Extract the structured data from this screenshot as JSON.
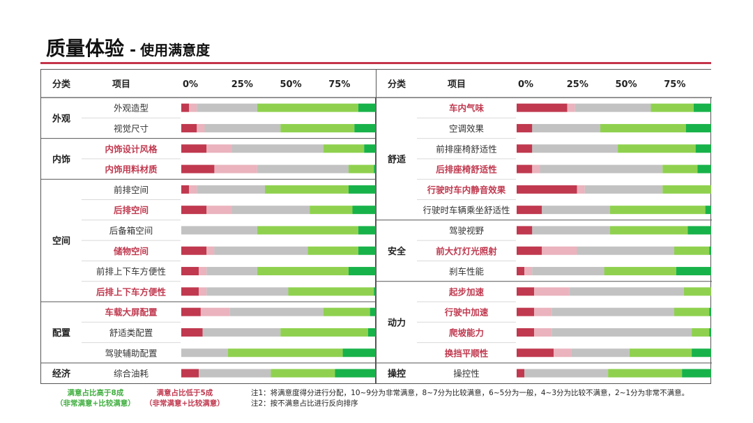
{
  "title": {
    "main": "质量体验",
    "separator": "-",
    "sub": "使用满意度"
  },
  "colors": {
    "very_unsat": "#c0394f",
    "less_unsat": "#eab3bd",
    "neutral": "#c2c2c2",
    "less_sat": "#8fd14f",
    "very_sat": "#18b24a",
    "highlight_text": "#c0394f",
    "accent_line": "#c4344a"
  },
  "headers": {
    "category": "分类",
    "item": "项目"
  },
  "axis_ticks": [
    "0%",
    "25%",
    "50%",
    "75%"
  ],
  "chart_data": {
    "type": "bar",
    "stacked": true,
    "orientation": "horizontal",
    "xlim": [
      0,
      100
    ],
    "x_unit": "%",
    "segment_order": [
      "非常不满意",
      "比较不满意",
      "一般",
      "比较满意",
      "非常满意"
    ],
    "panels": [
      {
        "groups": [
          {
            "category": "外观",
            "items": [
              {
                "label": "外观造型",
                "highlight": false,
                "values": [
                  4,
                  4,
                  31,
                  52,
                  9
                ]
              },
              {
                "label": "视觉尺寸",
                "highlight": false,
                "values": [
                  8,
                  4,
                  39,
                  38,
                  11
                ]
              }
            ]
          },
          {
            "category": "内饰",
            "items": [
              {
                "label": "内饰设计风格",
                "highlight": true,
                "values": [
                  13,
                  13,
                  47,
                  21,
                  6
                ]
              },
              {
                "label": "内饰用料材质",
                "highlight": true,
                "values": [
                  17,
                  22,
                  47,
                  13,
                  1
                ]
              }
            ]
          },
          {
            "category": "空间",
            "items": [
              {
                "label": "前排空间",
                "highlight": false,
                "values": [
                  4,
                  4,
                  35,
                  43,
                  14
                ]
              },
              {
                "label": "后排空间",
                "highlight": true,
                "values": [
                  13,
                  13,
                  40,
                  22,
                  12
                ]
              },
              {
                "label": "后备箱空间",
                "highlight": false,
                "values": [
                  0,
                  0,
                  39,
                  52,
                  9
                ]
              },
              {
                "label": "储物空间",
                "highlight": true,
                "values": [
                  13,
                  4,
                  48,
                  26,
                  9
                ]
              },
              {
                "label": "前排上下车方便性",
                "highlight": false,
                "values": [
                  9,
                  4,
                  26,
                  47,
                  14
                ]
              },
              {
                "label": "后排上下车方便性",
                "highlight": true,
                "values": [
                  9,
                  4,
                  42,
                  44,
                  1
                ]
              }
            ]
          },
          {
            "category": "配置",
            "items": [
              {
                "label": "车载大屏配置",
                "highlight": true,
                "values": [
                  10,
                  15,
                  48,
                  24,
                  3
                ]
              },
              {
                "label": "舒适类配置",
                "highlight": false,
                "values": [
                  11,
                  0,
                  40,
                  45,
                  4
                ]
              },
              {
                "label": "驾驶辅助配置",
                "highlight": false,
                "values": [
                  0,
                  0,
                  24,
                  59,
                  17
                ]
              }
            ]
          },
          {
            "category": "经济",
            "items": [
              {
                "label": "综合油耗",
                "highlight": false,
                "values": [
                  9,
                  0,
                  37,
                  33,
                  21
                ]
              }
            ]
          }
        ]
      },
      {
        "groups": [
          {
            "category": "舒适",
            "items": [
              {
                "label": "车内气味",
                "highlight": true,
                "values": [
                  26,
                  4,
                  39,
                  22,
                  9
                ]
              },
              {
                "label": "空调效果",
                "highlight": false,
                "values": [
                  8,
                  0,
                  35,
                  44,
                  13
                ]
              },
              {
                "label": "前排座椅舒适性",
                "highlight": false,
                "values": [
                  8,
                  0,
                  44,
                  40,
                  8
                ]
              },
              {
                "label": "后排座椅舒适性",
                "highlight": true,
                "values": [
                  8,
                  4,
                  63,
                  18,
                  7
                ]
              },
              {
                "label": "行驶时车内静音效果",
                "highlight": true,
                "values": [
                  31,
                  4,
                  40,
                  25,
                  0
                ]
              },
              {
                "label": "行驶时车辆乘坐舒适性",
                "highlight": false,
                "values": [
                  13,
                  0,
                  35,
                  49,
                  3
                ]
              }
            ]
          },
          {
            "category": "安全",
            "items": [
              {
                "label": "驾驶视野",
                "highlight": false,
                "values": [
                  8,
                  0,
                  40,
                  40,
                  12
                ]
              },
              {
                "label": "前大灯灯光照射",
                "highlight": true,
                "values": [
                  13,
                  18,
                  50,
                  18,
                  1
                ]
              },
              {
                "label": "刹车性能",
                "highlight": false,
                "values": [
                  4,
                  4,
                  37,
                  37,
                  18
                ]
              }
            ]
          },
          {
            "category": "动力",
            "items": [
              {
                "label": "起步加速",
                "highlight": true,
                "values": [
                  9,
                  18,
                  59,
                  14,
                  0
                ]
              },
              {
                "label": "行驶中加速",
                "highlight": true,
                "values": [
                  9,
                  9,
                  63,
                  18,
                  1
                ]
              },
              {
                "label": "爬坡能力",
                "highlight": true,
                "values": [
                  9,
                  9,
                  72,
                  9,
                  1
                ]
              },
              {
                "label": "换挡平顺性",
                "highlight": true,
                "values": [
                  19,
                  9,
                  30,
                  32,
                  10
                ]
              }
            ]
          },
          {
            "category": "操控",
            "items": [
              {
                "label": "操控性",
                "highlight": false,
                "values": [
                  4,
                  0,
                  43,
                  38,
                  15
                ]
              }
            ]
          }
        ]
      }
    ]
  },
  "legend": {
    "green_line1": "满意占比高于8成",
    "green_line2": "（非常满意+比较满意）",
    "red_line1": "满意占比低于5成",
    "red_line2": "（非常满意+比较满意）"
  },
  "notes": {
    "note1": "注1：将满意度得分进行分配，10~9分为非常满意，8~7分为比较满意，6~5分为一般，4~3分为比较不满意，2~1分为非常不满意。",
    "note2": "注2：按不满意占比进行反向排序"
  }
}
